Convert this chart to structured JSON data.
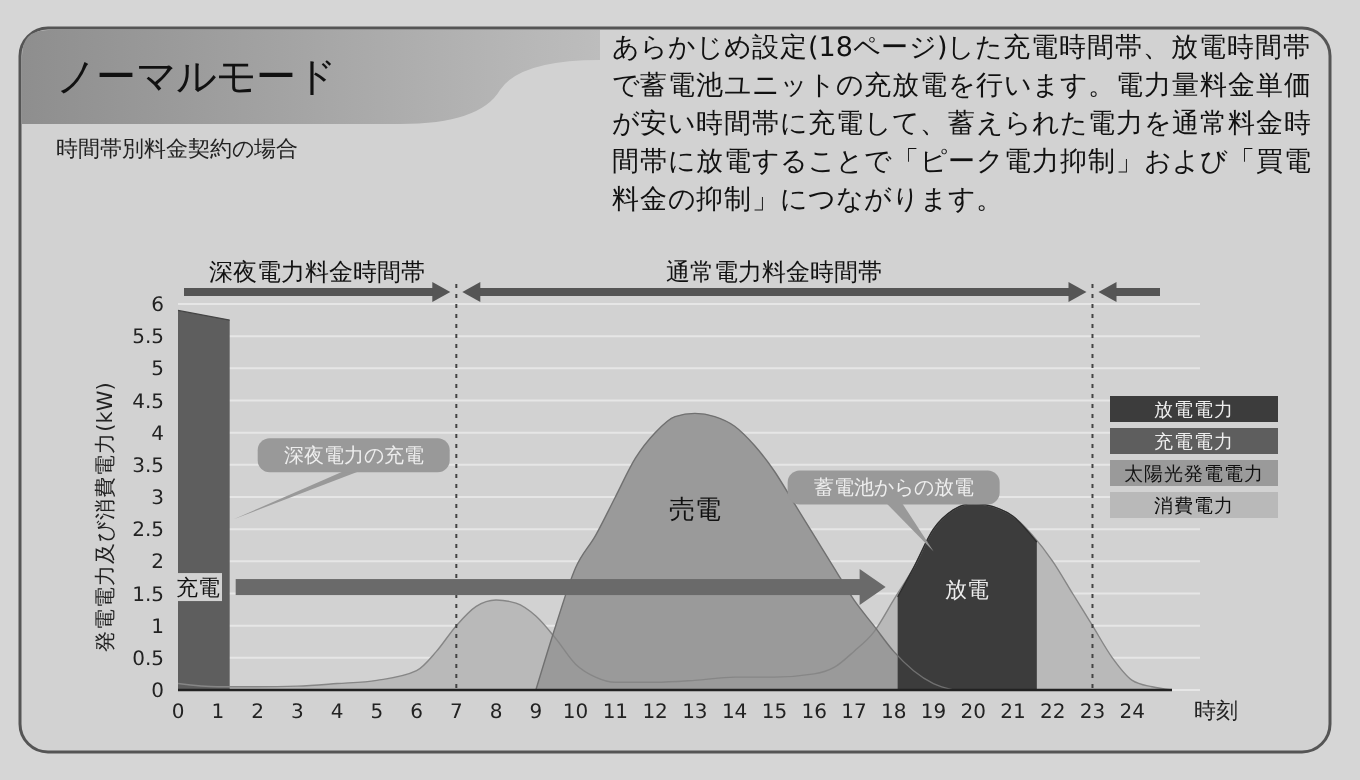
{
  "chart_data": {
    "type": "area",
    "title": "ノーマルモード",
    "subtitle": "時間帯別料金契約の場合",
    "ylabel": "発電電力及び消費電力(kW)",
    "xlabel": "時刻",
    "xlim": [
      0,
      25
    ],
    "xticks": [
      0,
      1,
      2,
      3,
      4,
      5,
      6,
      7,
      8,
      9,
      10,
      11,
      12,
      13,
      14,
      15,
      16,
      17,
      18,
      19,
      20,
      21,
      22,
      23,
      24
    ],
    "ylim": [
      0,
      6
    ],
    "yticks": [
      0,
      0.5,
      1,
      1.5,
      2,
      2.5,
      3,
      3.5,
      4,
      4.5,
      5,
      5.5,
      6
    ],
    "grid": "y",
    "legend": "right",
    "series": [
      {
        "name": "放電電力",
        "color": "#3c3c3c",
        "x": [
          18.1,
          18.5,
          19,
          19.5,
          20,
          20.5,
          21,
          21.6
        ],
        "values": [
          1.45,
          1.9,
          2.5,
          2.8,
          2.9,
          2.85,
          2.7,
          2.3
        ]
      },
      {
        "name": "充電電力",
        "color": "#5e5e5e",
        "x": [
          0,
          1.3
        ],
        "values": [
          5.9,
          5.75
        ]
      },
      {
        "name": "太陽光発電電力",
        "color": "#9a9a9a",
        "x": [
          9,
          9.5,
          10,
          10.5,
          11,
          11.5,
          12,
          12.5,
          13,
          13.5,
          14,
          14.5,
          15,
          15.5,
          16,
          16.5,
          17,
          17.5,
          18,
          18.5,
          19,
          19.5
        ],
        "values": [
          0,
          1,
          1.9,
          2.4,
          3,
          3.6,
          4,
          4.25,
          4.3,
          4.25,
          4.1,
          3.8,
          3.4,
          2.9,
          2.4,
          1.9,
          1.4,
          1,
          0.6,
          0.3,
          0.1,
          0
        ]
      },
      {
        "name": "消費電力",
        "color": "#b9b9b9",
        "x": [
          0,
          1,
          2,
          3,
          4,
          5,
          6,
          6.5,
          7,
          7.5,
          8,
          8.5,
          9,
          9.5,
          10,
          10.5,
          11,
          12,
          13,
          14,
          15,
          16,
          16.5,
          17,
          17.5,
          18,
          18.5,
          19,
          19.5,
          20,
          20.5,
          21,
          21.5,
          22,
          22.5,
          23,
          23.5,
          24,
          24.5,
          25
        ],
        "values": [
          0.1,
          0.05,
          0.05,
          0.06,
          0.1,
          0.15,
          0.3,
          0.6,
          1,
          1.3,
          1.4,
          1.35,
          1.15,
          0.8,
          0.4,
          0.2,
          0.12,
          0.12,
          0.15,
          0.2,
          0.2,
          0.25,
          0.35,
          0.6,
          0.9,
          1.4,
          1.9,
          2.5,
          2.8,
          2.9,
          2.85,
          2.7,
          2.4,
          2,
          1.5,
          1,
          0.5,
          0.15,
          0.05,
          0
        ]
      }
    ],
    "ref_lines": [
      {
        "axis": "x",
        "value": 7,
        "line_style": "dotted"
      },
      {
        "axis": "x",
        "value": 23,
        "line_style": "dotted"
      }
    ],
    "annotations": [
      "あらかじめ設定(18ページ)した充電時間帯、放電時間帯で蓄電池ユニットの充放電を行います。電力量料金単価が安い時間帯に充電して、蓄えられた電力を通常料金時間帯に放電することで「ピーク電力抑制」および「買電料金の抑制」につながります。",
      "深夜電力料金時間帯",
      "通常電力料金時間帯",
      "充電",
      "売電",
      "放電",
      "深夜電力の充電",
      "蓄電池からの放電"
    ]
  }
}
